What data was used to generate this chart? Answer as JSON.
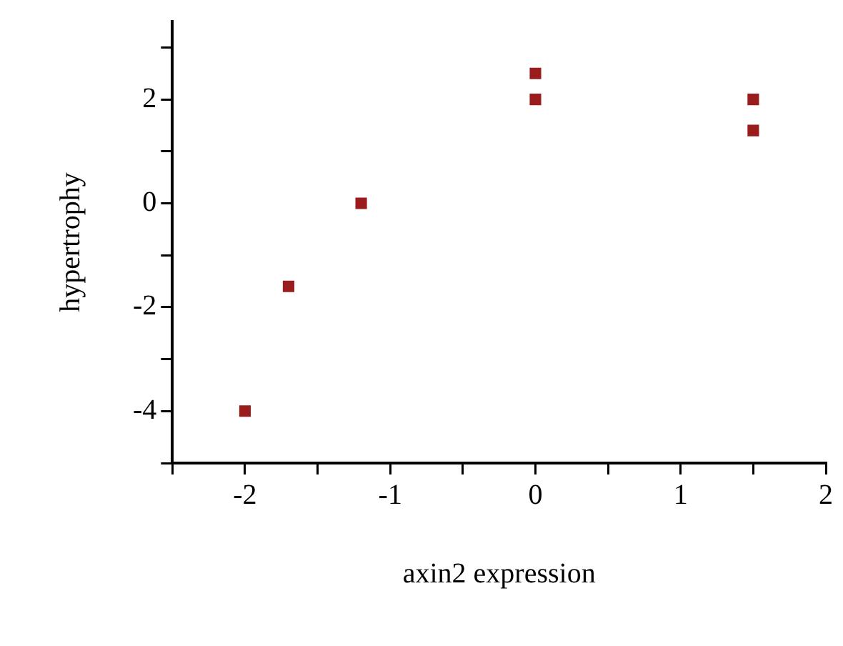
{
  "chart_data": {
    "type": "scatter",
    "xlabel": "axin2 expression",
    "ylabel": "hypertrophy",
    "x": [
      -2,
      -1.7,
      -1.2,
      0,
      0,
      1.5,
      1.5
    ],
    "values": [
      -4,
      -1.6,
      0,
      2.5,
      2,
      2,
      1.4
    ],
    "color": "#9b1c1c",
    "marker": "square",
    "grid": false,
    "legend": false,
    "xlim": [
      -2.5,
      2
    ],
    "ylim": [
      -5,
      3.5
    ],
    "xticks": [
      {
        "value": -2.5,
        "label": null
      },
      -2,
      {
        "value": -1.5,
        "label": null
      },
      -1,
      {
        "value": -0.5,
        "label": null
      },
      0,
      {
        "value": 0.5,
        "label": null
      },
      1,
      {
        "value": 1.5,
        "label": null
      },
      2
    ],
    "yticks": [
      {
        "value": -5,
        "label": null
      },
      -4,
      {
        "value": -3,
        "label": null
      },
      -2,
      {
        "value": -1,
        "label": null
      },
      0,
      {
        "value": 1,
        "label": null
      },
      2,
      {
        "value": 3,
        "label": null
      }
    ]
  }
}
